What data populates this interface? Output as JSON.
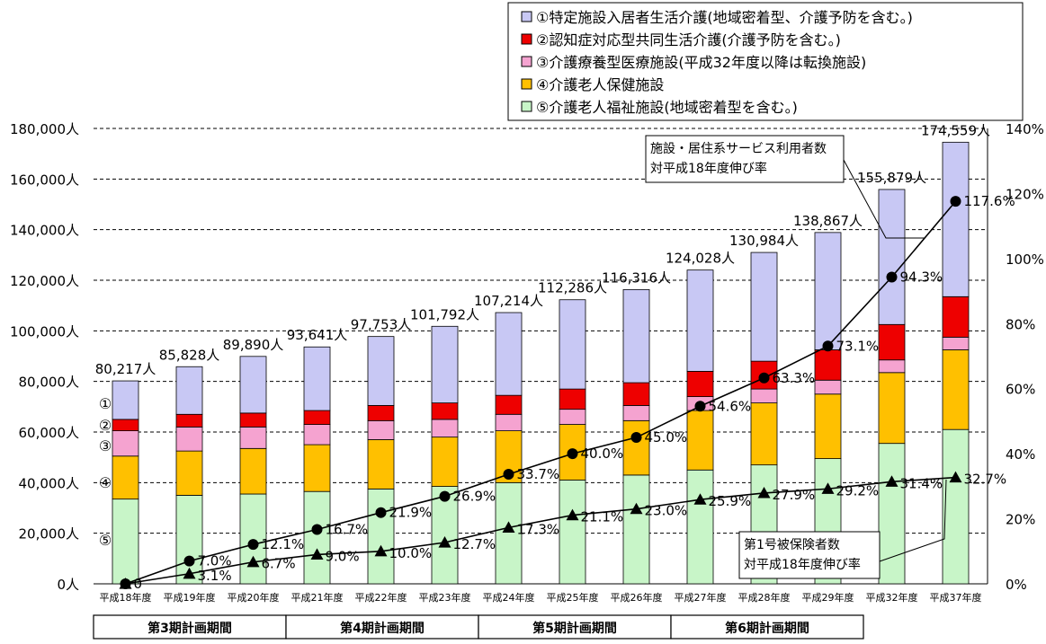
{
  "chart_data": {
    "type": "bar",
    "stacked": true,
    "categories": [
      "平成18年度",
      "平成19年度",
      "平成20年度",
      "平成21年度",
      "平成22年度",
      "平成23年度",
      "平成24年度",
      "平成25年度",
      "平成26年度",
      "平成27年度",
      "平成28年度",
      "平成29年度",
      "平成32年度",
      "平成37年度"
    ],
    "y_left": {
      "min": 0,
      "max": 180000,
      "ticks": [
        "0人",
        "20,000人",
        "40,000人",
        "60,000人",
        "80,000人",
        "100,000人",
        "120,000人",
        "140,000人",
        "160,000人",
        "180,000人"
      ]
    },
    "y_right": {
      "min": 0,
      "max": 140,
      "ticks": [
        "0%",
        "20%",
        "40%",
        "60%",
        "80%",
        "100%",
        "120%",
        "140%"
      ]
    },
    "legend_position": "top-right",
    "legend": [
      {
        "marker": "□",
        "text": "①特定施設入居者生活介護(地域密着型、介護予防を含む。)",
        "color": "#c8c8f4"
      },
      {
        "marker": "■",
        "text": "②認知症対応型共同生活介護(介護予防を含む。)",
        "color": "#ee0000"
      },
      {
        "marker": "■",
        "text": "③介護療養型医療施設(平成32年度以降は転換施設)",
        "color": "#f5a3d0"
      },
      {
        "marker": "■",
        "text": "④介護老人保健施設",
        "color": "#ffc000"
      },
      {
        "marker": "□",
        "text": "⑤介護老人福祉施設(地域密着型を含む。)",
        "color": "#c8f5c8"
      }
    ],
    "series": [
      {
        "key": "s5",
        "label": "⑤",
        "color": "#c8f5c8",
        "values": [
          33500,
          35000,
          35500,
          36500,
          37500,
          38500,
          40000,
          41000,
          43000,
          45000,
          47000,
          49500,
          55500,
          61000
        ]
      },
      {
        "key": "s4",
        "label": "④",
        "color": "#ffc000",
        "values": [
          17000,
          17500,
          18000,
          18500,
          19500,
          19500,
          20500,
          22000,
          21500,
          23500,
          24500,
          25500,
          28000,
          31500
        ]
      },
      {
        "key": "s3",
        "label": "③",
        "color": "#f5a3d0",
        "values": [
          10000,
          9500,
          8500,
          8000,
          7500,
          7000,
          6500,
          6000,
          6000,
          5500,
          5500,
          5500,
          5000,
          5000
        ]
      },
      {
        "key": "s2",
        "label": "②",
        "color": "#ee0000",
        "values": [
          4500,
          5000,
          5500,
          5500,
          6000,
          6500,
          7500,
          8000,
          9000,
          10000,
          11000,
          12000,
          14000,
          16000
        ]
      },
      {
        "key": "s1",
        "label": "①",
        "color": "#c8c8f4",
        "values": [
          15217,
          18828,
          22390,
          25141,
          27253,
          30292,
          32714,
          35286,
          36816,
          40028,
          42984,
          46367,
          53379,
          61059
        ]
      }
    ],
    "total_labels": [
      "80,217人",
      "85,828人",
      "89,890人",
      "93,641人",
      "97,753人",
      "101,792人",
      "107,214人",
      "112,286人",
      "116,316人",
      "124,028人",
      "130,984人",
      "138,867人",
      "155,879人",
      "174,559人"
    ],
    "growth_service": {
      "values": [
        0,
        7.0,
        12.1,
        16.7,
        21.9,
        26.9,
        33.7,
        40.0,
        45.0,
        54.6,
        63.3,
        73.1,
        94.3,
        117.6
      ],
      "labels": [
        "0",
        "7.0%",
        "12.1%",
        "16.7%",
        "21.9%",
        "26.9%",
        "33.7%",
        "40.0%",
        "45.0%",
        "54.6%",
        "63.3%",
        "73.1%",
        "94.3%",
        "117.6%"
      ]
    },
    "growth_insured": {
      "values": [
        0,
        3.1,
        6.7,
        9.0,
        10.0,
        12.7,
        17.3,
        21.1,
        23.0,
        25.9,
        27.9,
        29.2,
        31.4,
        32.7
      ],
      "labels": [
        "",
        "3.1%",
        "6.7%",
        "9.0%",
        "10.0%",
        "12.7%",
        "17.3%",
        "21.1%",
        "23.0%",
        "25.9%",
        "27.9%",
        "29.2%",
        "31.4%",
        "32.7%"
      ]
    },
    "annotation_service": [
      "施設・居住系サービス利用者数",
      "対平成18年度伸び率"
    ],
    "annotation_insured": [
      "第1号被保険者数",
      "対平成18年度伸び率"
    ],
    "periods": [
      "第3期計画期間",
      "第4期計画期間",
      "第5期計画期間",
      "第6期計画期間"
    ]
  }
}
